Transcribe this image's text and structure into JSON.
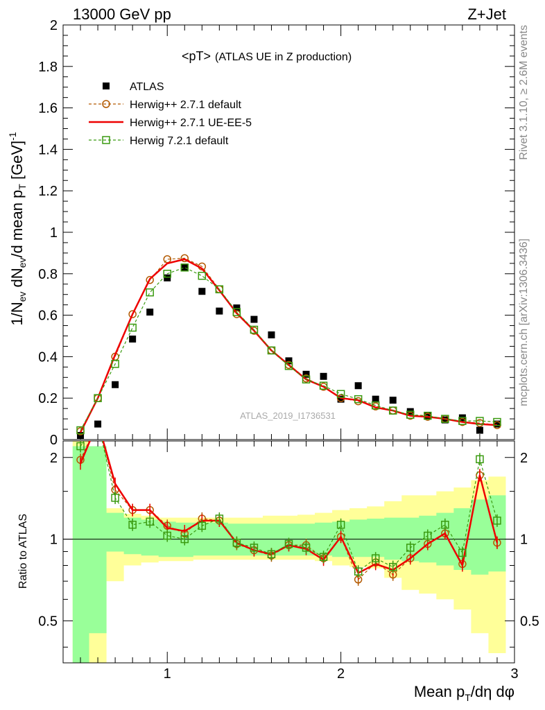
{
  "header": {
    "energy": "13000 GeV pp",
    "process": "Z+Jet"
  },
  "side_labels": {
    "rivet": "Rivet 3.1.10, ≥ 2.6M events",
    "site": "mcplots.cern.ch [arXiv:1306.3436]"
  },
  "chart_data": [
    {
      "type": "scatter",
      "title": "<pT>",
      "subtitle": "(ATLAS UE in Z production)",
      "ylabel": "1/N_ev dN_ev/d mean p_T [GeV]^-1",
      "watermark": "ATLAS_2019_I1736531",
      "xlim": [
        0.4,
        3.0
      ],
      "ylim": [
        0,
        2.0
      ],
      "yticks": [
        0,
        0.2,
        0.4,
        0.6,
        0.8,
        1,
        1.2,
        1.4,
        1.6,
        1.8,
        2
      ],
      "ytick_labels": [
        "0",
        "0.2",
        "0.4",
        "0.6",
        "0.8",
        "1",
        "1.2",
        "1.4",
        "1.6",
        "1.8",
        "2"
      ],
      "legend_position": "top-left",
      "x": [
        0.5,
        0.6,
        0.7,
        0.8,
        0.9,
        1.0,
        1.1,
        1.2,
        1.3,
        1.4,
        1.5,
        1.6,
        1.7,
        1.8,
        1.9,
        2.0,
        2.1,
        2.2,
        2.3,
        2.4,
        2.5,
        2.6,
        2.7,
        2.8,
        2.9
      ],
      "series": [
        {
          "name": "ATLAS",
          "color": "#000000",
          "marker": "square",
          "values": [
            0.02,
            0.075,
            0.265,
            0.485,
            0.615,
            0.78,
            0.83,
            0.715,
            0.62,
            0.635,
            0.58,
            0.505,
            0.38,
            0.315,
            0.305,
            0.195,
            0.26,
            0.195,
            0.19,
            0.135,
            0.115,
            0.095,
            0.105,
            0.045,
            0.075
          ]
        },
        {
          "name": "Herwig++ 2.7.1 default",
          "color": "#b35900",
          "marker": "circle",
          "dash": "4,3",
          "values": [
            0.04,
            0.2,
            0.4,
            0.605,
            0.77,
            0.87,
            0.875,
            0.835,
            0.725,
            0.605,
            0.525,
            0.43,
            0.36,
            0.295,
            0.255,
            0.2,
            0.185,
            0.16,
            0.14,
            0.115,
            0.11,
            0.1,
            0.085,
            0.08,
            0.07
          ]
        },
        {
          "name": "Herwig++ 2.7.1 UE-EE-5",
          "color": "#ee0000",
          "marker": "none",
          "dash": "",
          "values": [
            0.035,
            0.2,
            0.41,
            0.605,
            0.775,
            0.85,
            0.87,
            0.825,
            0.72,
            0.61,
            0.525,
            0.43,
            0.36,
            0.29,
            0.255,
            0.2,
            0.19,
            0.155,
            0.14,
            0.115,
            0.11,
            0.1,
            0.085,
            0.075,
            0.07
          ]
        },
        {
          "name": "Herwig 7.2.1 default",
          "color": "#3a9a10",
          "marker": "open-square",
          "dash": "4,3",
          "values": [
            0.045,
            0.2,
            0.365,
            0.54,
            0.71,
            0.8,
            0.83,
            0.79,
            0.725,
            0.615,
            0.53,
            0.43,
            0.355,
            0.29,
            0.26,
            0.22,
            0.195,
            0.165,
            0.14,
            0.12,
            0.115,
            0.1,
            0.09,
            0.09,
            0.085
          ]
        }
      ]
    },
    {
      "type": "line",
      "ylabel": "Ratio to ATLAS",
      "xlabel": "Mean p_T/dη dφ",
      "xlim": [
        0.4,
        3.0
      ],
      "ylim": [
        0.35,
        2.3
      ],
      "log_y": true,
      "xticks": [
        1,
        2,
        3
      ],
      "xtick_labels": [
        "1",
        "2",
        "3"
      ],
      "yticks": [
        0.5,
        1,
        2
      ],
      "ytick_labels": [
        "0.5",
        "1",
        "2"
      ],
      "x": [
        0.5,
        0.6,
        0.7,
        0.8,
        0.9,
        1.0,
        1.1,
        1.2,
        1.3,
        1.4,
        1.5,
        1.6,
        1.7,
        1.8,
        1.9,
        2.0,
        2.1,
        2.2,
        2.3,
        2.4,
        2.5,
        2.6,
        2.7,
        2.8,
        2.9
      ],
      "bands": {
        "green_upper": [
          2.2,
          2.2,
          1.25,
          1.2,
          1.18,
          1.16,
          1.15,
          1.15,
          1.15,
          1.14,
          1.14,
          1.14,
          1.14,
          1.14,
          1.15,
          1.16,
          1.18,
          1.19,
          1.2,
          1.2,
          1.22,
          1.25,
          1.3,
          1.4,
          1.45
        ],
        "green_lower": [
          0.35,
          0.45,
          0.9,
          0.88,
          0.87,
          0.86,
          0.86,
          0.87,
          0.87,
          0.87,
          0.87,
          0.87,
          0.87,
          0.87,
          0.87,
          0.86,
          0.86,
          0.86,
          0.84,
          0.83,
          0.82,
          0.8,
          0.77,
          0.74,
          0.76
        ],
        "yellow_upper": [
          2.3,
          1.7,
          1.3,
          1.24,
          1.22,
          1.2,
          1.2,
          1.2,
          1.2,
          1.2,
          1.2,
          1.22,
          1.22,
          1.23,
          1.25,
          1.28,
          1.3,
          1.32,
          1.38,
          1.45,
          1.45,
          1.5,
          1.55,
          1.65,
          1.7
        ],
        "yellow_lower": [
          0.35,
          0.35,
          0.7,
          0.8,
          0.82,
          0.83,
          0.83,
          0.84,
          0.84,
          0.84,
          0.84,
          0.84,
          0.84,
          0.84,
          0.83,
          0.8,
          0.79,
          0.78,
          0.72,
          0.65,
          0.63,
          0.6,
          0.55,
          0.45,
          0.38
        ]
      },
      "series": [
        {
          "name": "Herwig++ 2.7.1 default",
          "color": "#b35900",
          "marker": "circle",
          "dash": "4,3",
          "values": [
            1.96,
            2.7,
            1.52,
            1.28,
            1.28,
            1.12,
            1.05,
            1.19,
            1.17,
            0.96,
            0.91,
            0.87,
            0.95,
            0.95,
            0.85,
            1.02,
            0.71,
            0.82,
            0.74,
            0.85,
            0.96,
            1.05,
            0.81,
            1.72,
            0.97
          ]
        },
        {
          "name": "Herwig++ 2.7.1 UE-EE-5",
          "color": "#ee0000",
          "marker": "none",
          "dash": "",
          "values": [
            1.9,
            2.7,
            1.6,
            1.28,
            1.28,
            1.1,
            1.07,
            1.17,
            1.17,
            0.97,
            0.91,
            0.88,
            0.95,
            0.92,
            0.84,
            1.02,
            0.75,
            0.81,
            0.77,
            0.85,
            0.96,
            1.05,
            0.8,
            1.72,
            0.97
          ]
        },
        {
          "name": "Herwig 7.2.1 default",
          "color": "#3a9a10",
          "marker": "open-square",
          "dash": "4,3",
          "values": [
            2.2,
            2.7,
            1.42,
            1.13,
            1.16,
            1.03,
            1.0,
            1.12,
            1.19,
            0.97,
            0.93,
            0.88,
            0.96,
            0.93,
            0.86,
            1.13,
            0.76,
            0.85,
            0.79,
            0.93,
            1.03,
            1.13,
            0.89,
            1.97,
            1.17
          ]
        }
      ]
    }
  ]
}
